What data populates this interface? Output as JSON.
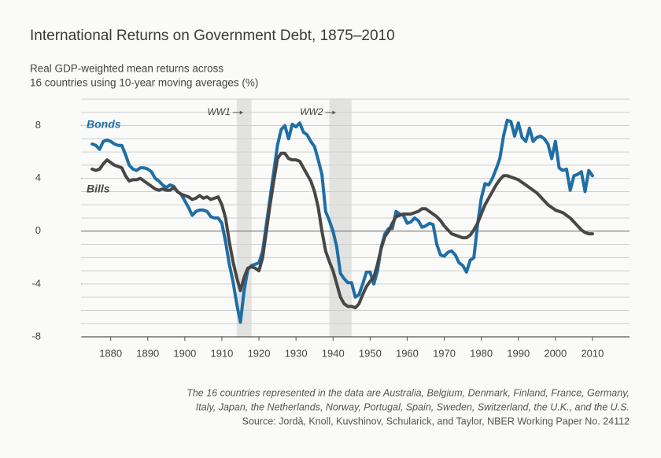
{
  "chart_data": {
    "type": "line",
    "title": "International Returns on Government Debt, 1875–2010",
    "subtitle": [
      "Real GDP-weighted mean returns across",
      "16 countries using 10-year moving averages (%)"
    ],
    "notes": [
      "The 16 countries represented in the data are Australia, Belgium, Denmark, Finland, France, Germany,",
      "Italy, Japan, the Netherlands, Norway, Portugal, Spain, Sweden, Switzerland, the U.K., and the U.S."
    ],
    "source": "Source: Jordà, Knoll, Kuvshinov, Schularick, and Taylor, NBER Working Paper No. 24112",
    "x": [
      1875,
      1876,
      1877,
      1878,
      1879,
      1880,
      1881,
      1882,
      1883,
      1884,
      1885,
      1886,
      1887,
      1888,
      1889,
      1890,
      1891,
      1892,
      1893,
      1894,
      1895,
      1896,
      1897,
      1898,
      1899,
      1900,
      1901,
      1902,
      1903,
      1904,
      1905,
      1906,
      1907,
      1908,
      1909,
      1910,
      1911,
      1912,
      1913,
      1914,
      1915,
      1916,
      1917,
      1918,
      1919,
      1920,
      1921,
      1922,
      1923,
      1924,
      1925,
      1926,
      1927,
      1928,
      1929,
      1930,
      1931,
      1932,
      1933,
      1934,
      1935,
      1936,
      1937,
      1938,
      1939,
      1940,
      1941,
      1942,
      1943,
      1944,
      1945,
      1946,
      1947,
      1948,
      1949,
      1950,
      1951,
      1952,
      1953,
      1954,
      1955,
      1956,
      1957,
      1958,
      1959,
      1960,
      1961,
      1962,
      1963,
      1964,
      1965,
      1966,
      1967,
      1968,
      1969,
      1970,
      1971,
      1972,
      1973,
      1974,
      1975,
      1976,
      1977,
      1978,
      1979,
      1980,
      1981,
      1982,
      1983,
      1984,
      1985,
      1986,
      1987,
      1988,
      1989,
      1990,
      1991,
      1992,
      1993,
      1994,
      1995,
      1996,
      1997,
      1998,
      1999,
      2000,
      2001,
      2002,
      2003,
      2004,
      2005,
      2006,
      2007,
      2008,
      2009,
      2010
    ],
    "series": [
      {
        "name": "Bonds",
        "color": "#1f6ea6",
        "values": [
          6.6,
          6.5,
          6.2,
          6.8,
          6.9,
          6.8,
          6.6,
          6.5,
          6.5,
          5.8,
          5.0,
          4.7,
          4.6,
          4.8,
          4.8,
          4.7,
          4.5,
          4.0,
          3.8,
          3.5,
          3.3,
          3.5,
          3.4,
          3.0,
          2.8,
          2.3,
          1.8,
          1.2,
          1.5,
          1.6,
          1.6,
          1.5,
          1.1,
          1.0,
          1.0,
          0.6,
          -0.8,
          -2.5,
          -3.8,
          -5.5,
          -6.9,
          -4.5,
          -2.9,
          -2.6,
          -2.5,
          -2.4,
          -1.5,
          0.5,
          2.5,
          4.5,
          6.5,
          7.7,
          8.0,
          7.0,
          8.1,
          7.9,
          8.2,
          7.5,
          7.3,
          6.8,
          6.4,
          5.4,
          4.3,
          1.5,
          0.8,
          0.0,
          -1.2,
          -3.2,
          -3.6,
          -3.9,
          -3.9,
          -5.0,
          -4.8,
          -4.0,
          -3.1,
          -3.1,
          -4.0,
          -3.0,
          -1.2,
          -0.2,
          0.2,
          0.2,
          1.5,
          1.3,
          1.2,
          0.6,
          0.7,
          1.0,
          0.8,
          0.3,
          0.4,
          0.6,
          0.5,
          -1.0,
          -1.8,
          -1.9,
          -1.6,
          -1.5,
          -1.8,
          -2.4,
          -2.6,
          -3.1,
          -2.2,
          -2.0,
          0.5,
          2.5,
          3.6,
          3.5,
          4.0,
          4.7,
          5.5,
          7.2,
          8.4,
          8.3,
          7.2,
          8.2,
          7.1,
          6.8,
          7.8,
          6.8,
          7.1,
          7.2,
          7.0,
          6.6,
          5.5,
          6.8,
          4.8,
          4.6,
          4.7,
          3.1,
          4.2,
          4.3,
          4.5,
          3.0,
          4.6,
          4.2
        ]
      },
      {
        "name": "Bills",
        "color": "#474747",
        "values": [
          4.7,
          4.6,
          4.7,
          5.1,
          5.4,
          5.2,
          5.0,
          4.9,
          4.8,
          4.2,
          3.8,
          3.9,
          3.9,
          4.0,
          3.8,
          3.6,
          3.4,
          3.2,
          3.1,
          3.2,
          3.1,
          3.1,
          3.3,
          3.0,
          2.8,
          2.7,
          2.6,
          2.4,
          2.5,
          2.7,
          2.5,
          2.6,
          2.4,
          2.5,
          2.6,
          2.0,
          1.0,
          -0.8,
          -2.3,
          -3.5,
          -4.5,
          -3.5,
          -2.8,
          -2.7,
          -2.8,
          -3.0,
          -2.0,
          0.0,
          2.0,
          3.8,
          5.5,
          5.9,
          5.9,
          5.5,
          5.4,
          5.4,
          5.3,
          4.8,
          4.3,
          3.8,
          3.0,
          1.8,
          0.0,
          -1.5,
          -2.3,
          -3.0,
          -4.0,
          -5.0,
          -5.5,
          -5.7,
          -5.7,
          -5.8,
          -5.5,
          -4.8,
          -4.2,
          -3.8,
          -3.5,
          -2.5,
          -1.3,
          -0.4,
          0.0,
          0.6,
          1.1,
          1.2,
          1.3,
          1.3,
          1.3,
          1.4,
          1.5,
          1.7,
          1.7,
          1.5,
          1.3,
          1.1,
          0.8,
          0.4,
          0.1,
          -0.2,
          -0.3,
          -0.4,
          -0.5,
          -0.5,
          -0.3,
          0.1,
          0.6,
          1.3,
          2.0,
          2.5,
          3.0,
          3.5,
          3.9,
          4.2,
          4.2,
          4.1,
          4.0,
          3.9,
          3.7,
          3.5,
          3.3,
          3.1,
          2.9,
          2.6,
          2.3,
          2.0,
          1.8,
          1.6,
          1.5,
          1.4,
          1.2,
          1.0,
          0.7,
          0.4,
          0.1,
          -0.1,
          -0.2,
          -0.2
        ]
      }
    ],
    "shaded_regions": [
      {
        "label": "WW1",
        "start": 1914,
        "end": 1918
      },
      {
        "label": "WW2",
        "start": 1939,
        "end": 1945
      }
    ],
    "xlim": [
      1872,
      2020
    ],
    "xticks": [
      1880,
      1890,
      1900,
      1910,
      1920,
      1930,
      1940,
      1950,
      1960,
      1970,
      1980,
      1990,
      2000,
      2010
    ],
    "ylim": [
      -8,
      10
    ],
    "yticks": [
      -8,
      -4,
      0,
      4,
      8
    ],
    "grid_step": 1,
    "grid": true
  }
}
